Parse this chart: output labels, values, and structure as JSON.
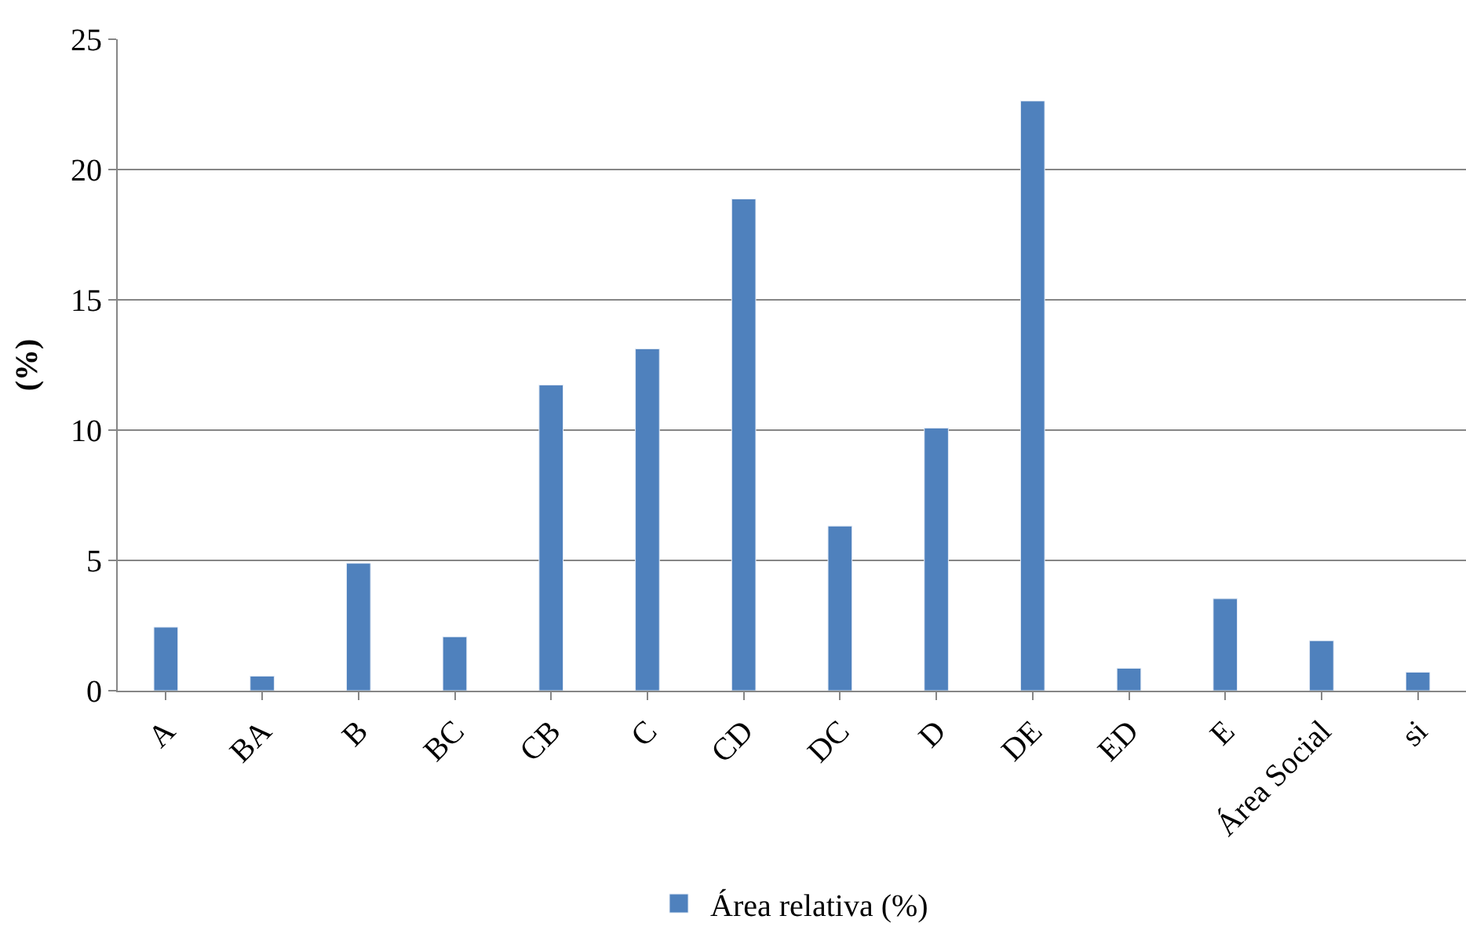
{
  "chart_data": {
    "type": "bar",
    "ylabel": "(%)",
    "categories": [
      "A",
      "BA",
      "B",
      "BC",
      "CB",
      "C",
      "CD",
      "DC",
      "D",
      "DE",
      "ED",
      "E",
      "Área Social",
      "si"
    ],
    "series": [
      {
        "name": "Área relativa (%)",
        "color": "#4f81bd",
        "values": [
          2.44,
          0.56,
          4.89,
          2.07,
          11.73,
          13.12,
          18.87,
          6.32,
          10.08,
          22.63,
          0.86,
          3.53,
          1.92,
          0.71
        ]
      }
    ],
    "ylim": [
      0,
      25
    ],
    "yticks": [
      0,
      5,
      10,
      15,
      20,
      25
    ],
    "grid": "y",
    "legend": "bottom"
  }
}
